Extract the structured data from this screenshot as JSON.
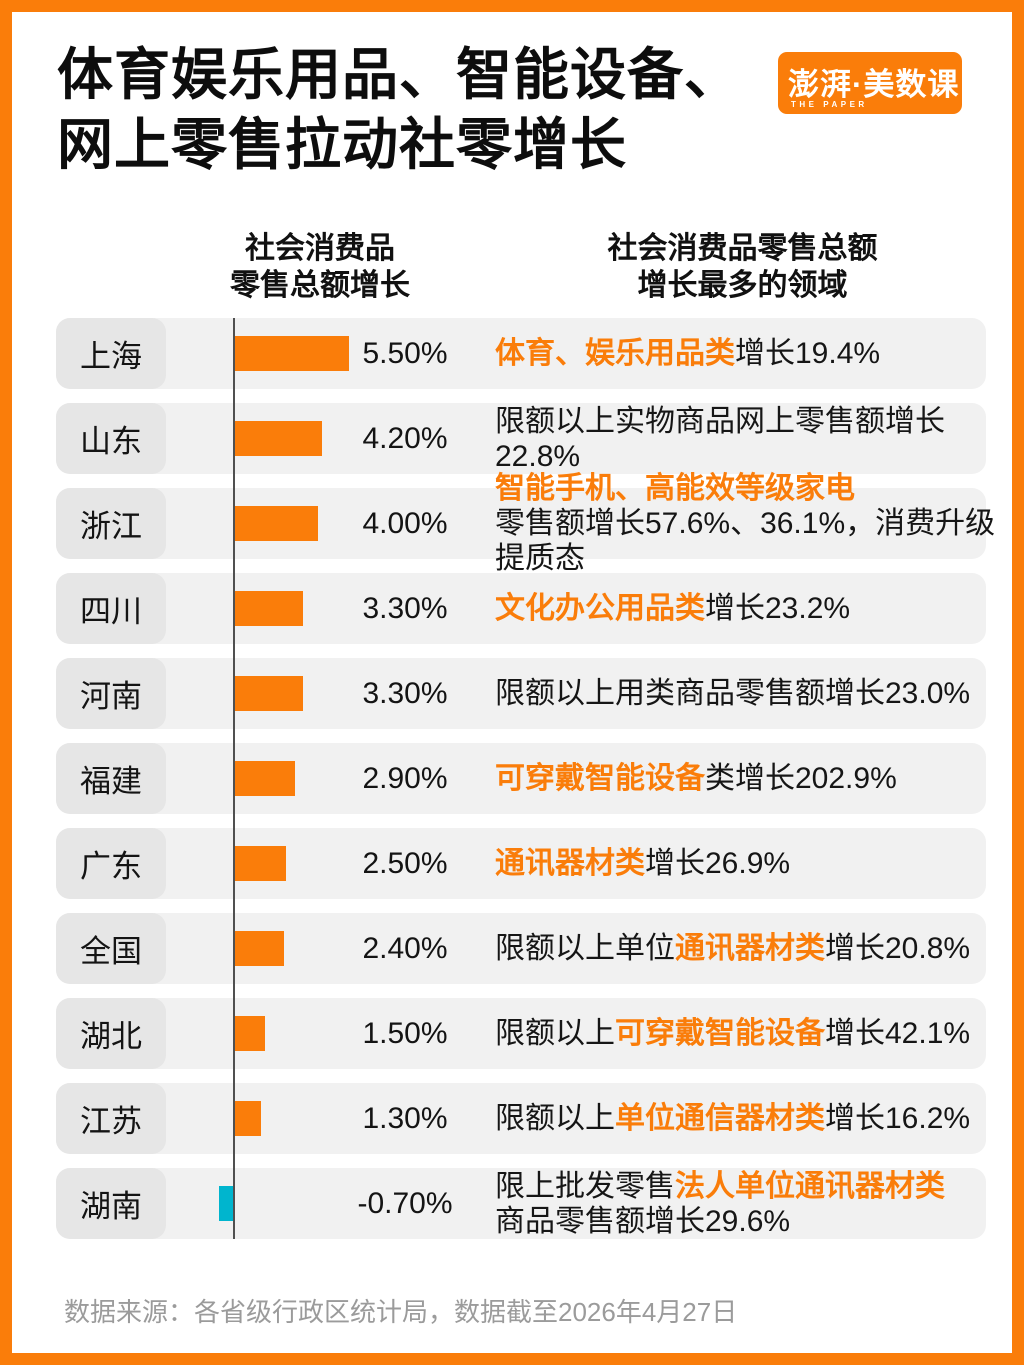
{
  "colors": {
    "orange": "#FA7D0A",
    "positive_bar": "#FA7D0A",
    "negative_bar": "#00B5CE",
    "row_background": "#F1F1F1",
    "label_background": "#E6E6E6",
    "axis_line": "#505050",
    "footer_text": "#9B9B9B"
  },
  "title": {
    "line1": "体育娱乐用品、智能设备、",
    "line2": "网上零售拉动社零增长"
  },
  "logo": {
    "text": "澎湃·美数课",
    "subtext": "THE PAPER"
  },
  "column_headers": {
    "left_line1": "社会消费品",
    "left_line2": "零售总额增长",
    "right_line1": "社会消费品零售总额",
    "right_line2": "增长最多的领域"
  },
  "chart_data": {
    "type": "bar",
    "orientation": "horizontal",
    "title": "体育娱乐用品、智能设备、网上零售拉动社零增长",
    "xlabel": "社会消费品零售总额增长",
    "xlim": [
      -0.7,
      5.5
    ],
    "grid": false,
    "categories": [
      "上海",
      "山东",
      "浙江",
      "四川",
      "河南",
      "福建",
      "广东",
      "全国",
      "湖北",
      "江苏",
      "湖南"
    ],
    "values": [
      5.5,
      4.2,
      4.0,
      3.3,
      3.3,
      2.9,
      2.5,
      2.4,
      1.5,
      1.3,
      -0.7
    ],
    "rows": [
      {
        "province": "上海",
        "value": 5.5,
        "percent_label": "5.50%",
        "segments": [
          {
            "text": "体育、娱乐用品类",
            "highlight": true
          },
          {
            "text": "增长19.4%",
            "highlight": false
          }
        ]
      },
      {
        "province": "山东",
        "value": 4.2,
        "percent_label": "4.20%",
        "segments": [
          {
            "text": "限额以上实物商品网上零售额增长22.8%",
            "highlight": false
          }
        ]
      },
      {
        "province": "浙江",
        "value": 4.0,
        "percent_label": "4.00%",
        "segments": [
          {
            "text": "智能手机、高能效等级家电",
            "highlight": true
          },
          {
            "text": "零售额增长57.6%、36.1%，消费升级提质态",
            "highlight": false
          }
        ]
      },
      {
        "province": "四川",
        "value": 3.3,
        "percent_label": "3.30%",
        "segments": [
          {
            "text": "文化办公用品类",
            "highlight": true
          },
          {
            "text": "增长23.2%",
            "highlight": false
          }
        ]
      },
      {
        "province": "河南",
        "value": 3.3,
        "percent_label": "3.30%",
        "segments": [
          {
            "text": "限额以上用类商品零售额增长23.0%",
            "highlight": false
          }
        ]
      },
      {
        "province": "福建",
        "value": 2.9,
        "percent_label": "2.90%",
        "segments": [
          {
            "text": "可穿戴智能设备",
            "highlight": true
          },
          {
            "text": "类增长202.9%",
            "highlight": false
          }
        ]
      },
      {
        "province": "广东",
        "value": 2.5,
        "percent_label": "2.50%",
        "segments": [
          {
            "text": "通讯器材类",
            "highlight": true
          },
          {
            "text": "增长26.9%",
            "highlight": false
          }
        ]
      },
      {
        "province": "全国",
        "value": 2.4,
        "percent_label": "2.40%",
        "segments": [
          {
            "text": "限额以上单位",
            "highlight": false
          },
          {
            "text": "通讯器材类",
            "highlight": true
          },
          {
            "text": "增长20.8%",
            "highlight": false
          }
        ]
      },
      {
        "province": "湖北",
        "value": 1.5,
        "percent_label": "1.50%",
        "segments": [
          {
            "text": "限额以上",
            "highlight": false
          },
          {
            "text": "可穿戴智能设备",
            "highlight": true
          },
          {
            "text": "增长42.1%",
            "highlight": false
          }
        ]
      },
      {
        "province": "江苏",
        "value": 1.3,
        "percent_label": "1.30%",
        "segments": [
          {
            "text": "限额以上",
            "highlight": false
          },
          {
            "text": "单位通信器材类",
            "highlight": true
          },
          {
            "text": "增长16.2%",
            "highlight": false
          }
        ]
      },
      {
        "province": "湖南",
        "value": -0.7,
        "percent_label": "-0.70%",
        "segments": [
          {
            "text": "限上批发零售",
            "highlight": false
          },
          {
            "text": "法人单位通讯器材类",
            "highlight": true
          },
          {
            "text": "商品零售额增长29.6%",
            "highlight": false
          }
        ]
      }
    ]
  },
  "footer": {
    "source_note": "数据来源：各省级行政区统计局，数据截至2026年4月27日"
  }
}
